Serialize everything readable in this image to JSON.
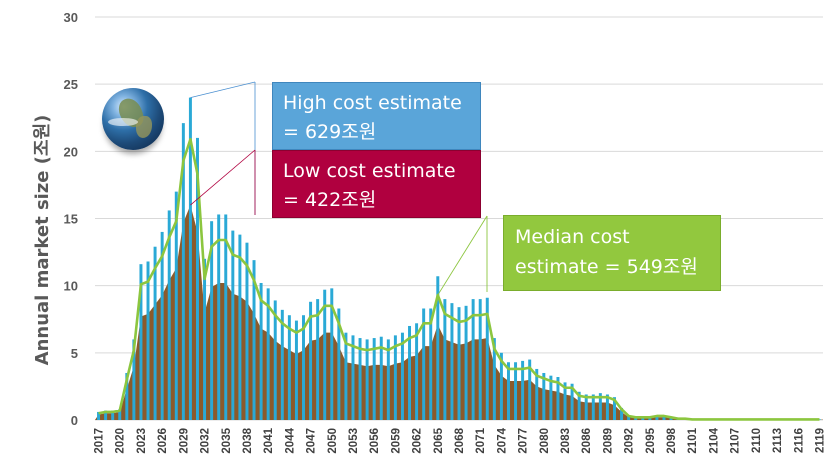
{
  "chart_data": {
    "type": "bar",
    "ylabel": "Annual market size (조원)",
    "xlabel": "",
    "ylim": [
      0,
      30
    ],
    "yticks": [
      0,
      5,
      10,
      15,
      20,
      25,
      30
    ],
    "grid": true,
    "xtick_labels": [
      "2017",
      "2020",
      "2023",
      "2026",
      "2029",
      "2032",
      "2035",
      "2038",
      "2041",
      "2044",
      "2047",
      "2050",
      "2053",
      "2056",
      "2059",
      "2062",
      "2065",
      "2068",
      "2071",
      "2074",
      "2077",
      "2080",
      "2083",
      "2086",
      "2089",
      "2092",
      "2095",
      "2098",
      "2101",
      "2104",
      "2107",
      "2110",
      "2113",
      "2116",
      "2119"
    ],
    "x_start": 2017,
    "colors": {
      "high_bars": "#2aa9d6",
      "low_area": "#8b5a2b",
      "median_line": "#8cc63f",
      "grid": "#d9d9d9"
    },
    "series": [
      {
        "name": "High cost estimate",
        "values": [
          0.6,
          0.7,
          0.7,
          0.8,
          3.5,
          6.0,
          11.6,
          11.8,
          12.9,
          14.0,
          15.6,
          17.0,
          22.1,
          24.0,
          21.0,
          12.0,
          14.8,
          15.3,
          15.3,
          14.1,
          13.8,
          13.2,
          11.9,
          10.2,
          9.8,
          8.9,
          8.2,
          7.8,
          7.4,
          7.8,
          8.8,
          9.0,
          9.7,
          9.8,
          8.3,
          6.5,
          6.3,
          6.1,
          6.0,
          6.1,
          6.2,
          6.0,
          6.3,
          6.5,
          7.0,
          7.2,
          8.3,
          8.3,
          10.7,
          9.0,
          8.7,
          8.4,
          8.5,
          9.0,
          9.0,
          9.1,
          6.1,
          5.0,
          4.3,
          4.3,
          4.4,
          4.5,
          3.8,
          3.5,
          3.3,
          3.2,
          2.8,
          2.7,
          2.1,
          1.9,
          1.9,
          2.0,
          1.9,
          1.7,
          0.9,
          0.3,
          0.2,
          0.2,
          0.2,
          0.3,
          0.3,
          0.2,
          0.1,
          0.1,
          0.05,
          0.05,
          0.05,
          0.05,
          0.05,
          0.05,
          0.05,
          0.05,
          0.05,
          0.05,
          0.05,
          0.05,
          0.05,
          0.05,
          0.05,
          0.05,
          0.05,
          0.05,
          0.05
        ]
      },
      {
        "name": "Low cost estimate",
        "values": [
          0.4,
          0.5,
          0.5,
          0.6,
          2.3,
          4.0,
          7.7,
          7.9,
          8.6,
          9.3,
          10.4,
          11.3,
          14.7,
          16.0,
          14.0,
          8.0,
          9.9,
          10.2,
          10.2,
          9.4,
          9.2,
          8.8,
          7.9,
          6.8,
          6.5,
          5.9,
          5.5,
          5.2,
          4.9,
          5.2,
          5.9,
          6.0,
          6.5,
          6.5,
          5.5,
          4.3,
          4.2,
          4.1,
          4.0,
          4.1,
          4.1,
          4.0,
          4.2,
          4.3,
          4.7,
          4.8,
          5.5,
          5.5,
          7.1,
          6.0,
          5.8,
          5.6,
          5.7,
          6.0,
          6.0,
          6.1,
          4.1,
          3.3,
          2.9,
          2.9,
          2.9,
          3.0,
          2.5,
          2.3,
          2.2,
          2.1,
          1.9,
          1.8,
          1.4,
          1.3,
          1.3,
          1.3,
          1.3,
          1.1,
          0.6,
          0.2,
          0.15,
          0.15,
          0.15,
          0.2,
          0.2,
          0.15,
          0.07,
          0.07,
          0.03,
          0.03,
          0.03,
          0.03,
          0.03,
          0.03,
          0.03,
          0.03,
          0.03,
          0.03,
          0.03,
          0.03,
          0.03,
          0.03,
          0.03,
          0.03,
          0.03,
          0.03,
          0.03
        ]
      },
      {
        "name": "Median cost estimate",
        "values": [
          0.5,
          0.6,
          0.6,
          0.7,
          3.0,
          5.2,
          10.1,
          10.3,
          11.3,
          12.2,
          13.6,
          14.8,
          19.3,
          20.9,
          18.3,
          10.5,
          12.9,
          13.4,
          13.4,
          12.3,
          12.1,
          11.5,
          10.4,
          8.9,
          8.5,
          7.8,
          7.2,
          6.8,
          6.5,
          6.8,
          7.7,
          7.8,
          8.5,
          8.5,
          7.2,
          5.7,
          5.5,
          5.3,
          5.2,
          5.3,
          5.4,
          5.2,
          5.5,
          5.7,
          6.1,
          6.3,
          7.2,
          7.2,
          9.3,
          7.9,
          7.6,
          7.3,
          7.4,
          7.8,
          7.8,
          7.9,
          5.3,
          4.4,
          3.8,
          3.8,
          3.8,
          3.9,
          3.3,
          3.1,
          2.9,
          2.8,
          2.4,
          2.4,
          1.8,
          1.7,
          1.7,
          1.7,
          1.7,
          1.5,
          0.8,
          0.3,
          0.2,
          0.2,
          0.2,
          0.3,
          0.3,
          0.2,
          0.1,
          0.1,
          0.04,
          0.04,
          0.04,
          0.04,
          0.04,
          0.04,
          0.04,
          0.04,
          0.04,
          0.04,
          0.04,
          0.04,
          0.04,
          0.04,
          0.04,
          0.04,
          0.04,
          0.04,
          0.04
        ]
      }
    ],
    "annotations": [
      {
        "series": "High cost estimate",
        "lines": [
          "High cost estimate",
          "= 629조원"
        ]
      },
      {
        "series": "Low cost estimate",
        "lines": [
          "Low cost estimate",
          "= 422조원"
        ]
      },
      {
        "series": "Median cost estimate",
        "lines": [
          "Median cost",
          "estimate = 549조원"
        ]
      }
    ],
    "image": "globe"
  }
}
